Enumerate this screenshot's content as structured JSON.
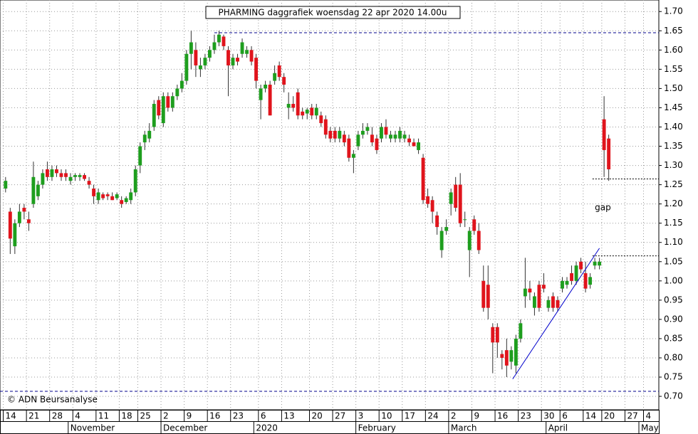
{
  "chart_data": {
    "type": "candlestick",
    "title": "PHARMING daggrafiek woensdag 22 apr 2020 14.00u",
    "copyright": "© ADN Beursanalyse",
    "annotation": {
      "text": "gap",
      "x": 127,
      "y": 1.19
    },
    "up_color": "#1e9e1e",
    "down_color": "#e0141c",
    "grid": true,
    "ylim": [
      0.665,
      1.73
    ],
    "xlim": [
      -1.2,
      140.8
    ],
    "yticks": [
      {
        "value": 0.7,
        "label": "0.70"
      },
      {
        "value": 0.75,
        "label": "0.75"
      },
      {
        "value": 0.8,
        "label": "0.80"
      },
      {
        "value": 0.85,
        "label": "0.85"
      },
      {
        "value": 0.9,
        "label": "0.90"
      },
      {
        "value": 0.95,
        "label": "0.95"
      },
      {
        "value": 1.0,
        "label": "1.00"
      },
      {
        "value": 1.05,
        "label": "1.05"
      },
      {
        "value": 1.1,
        "label": "1.10"
      },
      {
        "value": 1.15,
        "label": "1.15"
      },
      {
        "value": 1.2,
        "label": "1.20"
      },
      {
        "value": 1.25,
        "label": "1.25"
      },
      {
        "value": 1.3,
        "label": "1.30"
      },
      {
        "value": 1.35,
        "label": "1.35"
      },
      {
        "value": 1.4,
        "label": "1.40"
      },
      {
        "value": 1.45,
        "label": "1.45"
      },
      {
        "value": 1.5,
        "label": "1.50"
      },
      {
        "value": 1.55,
        "label": "1.55"
      },
      {
        "value": 1.6,
        "label": "1.60"
      },
      {
        "value": 1.65,
        "label": "1.65"
      },
      {
        "value": 1.7,
        "label": "1.70"
      }
    ],
    "xticks": [
      {
        "value": 0,
        "label": "14"
      },
      {
        "value": 5,
        "label": "21"
      },
      {
        "value": 10,
        "label": "28"
      },
      {
        "value": 15,
        "label": "4"
      },
      {
        "value": 20,
        "label": "11"
      },
      {
        "value": 25,
        "label": "18"
      },
      {
        "value": 29,
        "label": "25"
      },
      {
        "value": 34,
        "label": "2"
      },
      {
        "value": 39,
        "label": "9"
      },
      {
        "value": 44,
        "label": "16"
      },
      {
        "value": 49,
        "label": "23"
      },
      {
        "value": 55,
        "label": "6"
      },
      {
        "value": 60,
        "label": "13"
      },
      {
        "value": 66,
        "label": "20"
      },
      {
        "value": 71,
        "label": "27"
      },
      {
        "value": 76,
        "label": "3"
      },
      {
        "value": 81,
        "label": "10"
      },
      {
        "value": 86,
        "label": "17"
      },
      {
        "value": 91,
        "label": "24"
      },
      {
        "value": 96,
        "label": "2"
      },
      {
        "value": 101,
        "label": "9"
      },
      {
        "value": 106,
        "label": "16"
      },
      {
        "value": 111,
        "label": "23"
      },
      {
        "value": 116,
        "label": "30"
      },
      {
        "value": 120,
        "label": "6"
      },
      {
        "value": 125,
        "label": "14"
      },
      {
        "value": 129,
        "label": "20"
      },
      {
        "value": 134,
        "label": "27"
      },
      {
        "value": 138,
        "label": "4"
      }
    ],
    "months": [
      {
        "value": 14,
        "label": "November"
      },
      {
        "value": 34,
        "label": "December"
      },
      {
        "value": 54,
        "label": "2020"
      },
      {
        "value": 76,
        "label": "February"
      },
      {
        "value": 96,
        "label": "March"
      },
      {
        "value": 117,
        "label": "April"
      },
      {
        "value": 137,
        "label": "May"
      }
    ],
    "hlines": [
      {
        "y": 1.645,
        "from": 45,
        "color": "#00008b",
        "dash": "4,3"
      },
      {
        "y": 0.713,
        "from": -1.2,
        "color": "#00008b",
        "dash": "4,3"
      },
      {
        "y": 1.265,
        "from": 126.5,
        "color": "#000",
        "dash": "2,2"
      },
      {
        "y": 1.065,
        "from": 126.5,
        "color": "#000",
        "dash": "2,2"
      }
    ],
    "trendline": {
      "x": [
        109.3,
        128
      ],
      "y": [
        0.745,
        1.085
      ],
      "color": "#0000cc"
    },
    "open": [
      1.24,
      1.18,
      1.09,
      1.15,
      1.19,
      1.16,
      1.2,
      1.22,
      1.25,
      1.29,
      1.27,
      1.29,
      1.28,
      1.28,
      1.26,
      1.27,
      1.27,
      1.275,
      1.26,
      1.24,
      1.21,
      1.225,
      1.225,
      1.22,
      1.215,
      1.21,
      1.205,
      1.21,
      1.23,
      1.3,
      1.36,
      1.37,
      1.4,
      1.47,
      1.41,
      1.48,
      1.45,
      1.48,
      1.5,
      1.52,
      1.59,
      1.6,
      1.55,
      1.56,
      1.58,
      1.6,
      1.62,
      1.635,
      1.6,
      1.56,
      1.58,
      1.59,
      1.59,
      1.6,
      1.58,
      1.47,
      1.5,
      1.51,
      1.52,
      1.56,
      1.53,
      1.45,
      1.46,
      1.49,
      1.44,
      1.435,
      1.45,
      1.43,
      1.43,
      1.42,
      1.39,
      1.39,
      1.37,
      1.38,
      1.37,
      1.32,
      1.35,
      1.38,
      1.39,
      1.38,
      1.37,
      1.37,
      1.4,
      1.37,
      1.37,
      1.37,
      1.37,
      1.37,
      1.36,
      1.34,
      1.32,
      1.22,
      1.21,
      1.17,
      1.08,
      1.13,
      1.2,
      1.25,
      1.25,
      1.16,
      1.08,
      1.16,
      1.13,
      1.0,
      0.99,
      0.88,
      0.88,
      0.81,
      0.82,
      0.79,
      0.78,
      0.85,
      0.96,
      0.98,
      0.93,
      0.99,
      0.99,
      0.93,
      0.96,
      0.95,
      0.98,
      0.99,
      1.02,
      1.0,
      1.05,
      1.02,
      0.99,
      1.04,
      1.04,
      1.42,
      1.37
    ],
    "high": [
      1.27,
      1.19,
      1.16,
      1.2,
      1.2,
      1.18,
      1.31,
      1.26,
      1.29,
      1.31,
      1.3,
      1.3,
      1.29,
      1.29,
      1.28,
      1.28,
      1.28,
      1.28,
      1.27,
      1.25,
      1.24,
      1.23,
      1.23,
      1.23,
      1.23,
      1.22,
      1.22,
      1.24,
      1.3,
      1.36,
      1.39,
      1.41,
      1.47,
      1.48,
      1.49,
      1.49,
      1.49,
      1.51,
      1.54,
      1.6,
      1.65,
      1.62,
      1.58,
      1.59,
      1.61,
      1.64,
      1.65,
      1.64,
      1.61,
      1.59,
      1.59,
      1.63,
      1.61,
      1.61,
      1.59,
      1.51,
      1.52,
      1.52,
      1.56,
      1.57,
      1.54,
      1.49,
      1.48,
      1.5,
      1.45,
      1.45,
      1.46,
      1.46,
      1.44,
      1.43,
      1.4,
      1.4,
      1.4,
      1.39,
      1.38,
      1.34,
      1.39,
      1.41,
      1.41,
      1.4,
      1.38,
      1.41,
      1.42,
      1.39,
      1.39,
      1.4,
      1.39,
      1.38,
      1.37,
      1.37,
      1.33,
      1.24,
      1.22,
      1.18,
      1.14,
      1.16,
      1.24,
      1.27,
      1.28,
      1.18,
      1.14,
      1.17,
      1.15,
      1.04,
      1.04,
      0.89,
      0.89,
      0.82,
      0.85,
      0.83,
      0.86,
      0.9,
      1.06,
      1.0,
      0.97,
      1.0,
      1.02,
      0.96,
      0.97,
      0.96,
      1.01,
      1.01,
      1.04,
      1.05,
      1.06,
      1.05,
      1.02,
      1.06,
      1.06,
      1.48,
      1.38
    ],
    "low": [
      1.23,
      1.07,
      1.07,
      1.14,
      1.16,
      1.13,
      1.19,
      1.21,
      1.24,
      1.26,
      1.26,
      1.27,
      1.26,
      1.26,
      1.25,
      1.26,
      1.26,
      1.26,
      1.24,
      1.2,
      1.2,
      1.21,
      1.21,
      1.21,
      1.21,
      1.19,
      1.2,
      1.2,
      1.22,
      1.28,
      1.34,
      1.36,
      1.39,
      1.42,
      1.4,
      1.44,
      1.44,
      1.47,
      1.49,
      1.51,
      1.55,
      1.53,
      1.53,
      1.55,
      1.57,
      1.59,
      1.61,
      1.6,
      1.48,
      1.55,
      1.56,
      1.58,
      1.58,
      1.56,
      1.5,
      1.42,
      1.49,
      1.43,
      1.51,
      1.52,
      1.49,
      1.42,
      1.44,
      1.42,
      1.42,
      1.42,
      1.42,
      1.42,
      1.4,
      1.37,
      1.36,
      1.36,
      1.36,
      1.35,
      1.31,
      1.28,
      1.34,
      1.37,
      1.38,
      1.35,
      1.33,
      1.36,
      1.37,
      1.36,
      1.36,
      1.36,
      1.36,
      1.35,
      1.35,
      1.33,
      1.2,
      1.19,
      1.15,
      1.12,
      1.06,
      1.12,
      1.17,
      1.18,
      1.14,
      1.14,
      1.01,
      1.12,
      1.07,
      0.92,
      0.9,
      0.76,
      0.8,
      0.77,
      0.75,
      0.77,
      0.76,
      0.84,
      0.93,
      0.95,
      0.91,
      0.92,
      0.97,
      0.92,
      0.92,
      0.92,
      0.97,
      0.98,
      0.99,
      0.99,
      1.02,
      0.97,
      0.98,
      1.03,
      1.03,
      1.27,
      1.26
    ],
    "close": [
      1.26,
      1.11,
      1.15,
      1.18,
      1.18,
      1.15,
      1.27,
      1.25,
      1.28,
      1.27,
      1.29,
      1.28,
      1.27,
      1.27,
      1.27,
      1.275,
      1.275,
      1.265,
      1.25,
      1.22,
      1.23,
      1.215,
      1.22,
      1.21,
      1.225,
      1.2,
      1.215,
      1.23,
      1.29,
      1.35,
      1.38,
      1.39,
      1.46,
      1.43,
      1.48,
      1.45,
      1.48,
      1.5,
      1.52,
      1.59,
      1.62,
      1.56,
      1.56,
      1.58,
      1.6,
      1.62,
      1.64,
      1.61,
      1.56,
      1.58,
      1.57,
      1.62,
      1.6,
      1.57,
      1.52,
      1.5,
      1.51,
      1.43,
      1.54,
      1.53,
      1.51,
      1.46,
      1.45,
      1.43,
      1.43,
      1.445,
      1.43,
      1.45,
      1.41,
      1.38,
      1.37,
      1.37,
      1.39,
      1.36,
      1.32,
      1.33,
      1.38,
      1.39,
      1.4,
      1.36,
      1.34,
      1.4,
      1.38,
      1.38,
      1.38,
      1.39,
      1.38,
      1.36,
      1.35,
      1.36,
      1.21,
      1.2,
      1.18,
      1.14,
      1.13,
      1.14,
      1.23,
      1.19,
      1.15,
      1.16,
      1.13,
      1.13,
      1.08,
      0.93,
      0.93,
      0.84,
      0.84,
      0.8,
      0.78,
      0.82,
      0.85,
      0.89,
      0.98,
      0.97,
      0.96,
      0.93,
      0.98,
      0.95,
      0.93,
      0.93,
      1.0,
      1.0,
      1.0,
      1.04,
      1.03,
      0.98,
      1.01,
      1.05,
      1.05,
      1.34,
      1.29
    ]
  }
}
